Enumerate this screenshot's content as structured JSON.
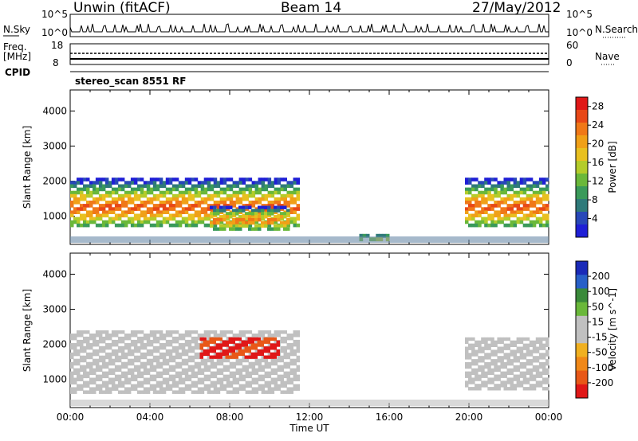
{
  "header": {
    "station": "Unwin (fitACF)",
    "beam": "Beam 14",
    "date": "27/May/2012"
  },
  "panels": {
    "nsky_label": "N.Sky",
    "nsearch_label": "N.Search",
    "log_top": "10^5",
    "log_bottom": "10^0",
    "freq_label": "Freq.",
    "freq_unit": "[MHz]",
    "freq_top": "18",
    "freq_bottom": "8",
    "nave_label": "Nave",
    "nave_top": "60",
    "nave_bottom": "0",
    "cpid_label": "CPID",
    "cpid_value": "stereo_scan 8551 RF"
  },
  "colors": {
    "power_scale": [
      "#1f1fd6",
      "#2848b8",
      "#2f7a7a",
      "#3a9a5a",
      "#6ab83a",
      "#b4cc2a",
      "#e8c020",
      "#f0a018",
      "#f07818",
      "#e84818",
      "#e01818"
    ],
    "velocity_scale": [
      "#1a2ab8",
      "#2860c8",
      "#3a8a3a",
      "#6ab83a",
      "#c0c0c0",
      "#c0c0c0",
      "#f0b020",
      "#f08818",
      "#e85818",
      "#e01818"
    ]
  },
  "chart_data": [
    {
      "type": "heatmap",
      "title": "",
      "ylabel": "Slant Range [km]",
      "xlabel": "",
      "ylim": [
        200,
        4600
      ],
      "yticks": [
        1000,
        2000,
        3000,
        4000
      ],
      "x_range": [
        "00:00",
        "24:00"
      ],
      "colorbar": {
        "label": "Power [dB]",
        "ticks": [
          4,
          8,
          12,
          16,
          20,
          24,
          28
        ],
        "range": [
          0,
          30
        ]
      },
      "features": [
        {
          "start_hour": 0.0,
          "end_hour": 11.5,
          "range_km": [
            700,
            2100
          ],
          "peak_db": 28
        },
        {
          "start_hour": 7.0,
          "end_hour": 11.0,
          "range_km": [
            600,
            1300
          ],
          "peak_db": 26
        },
        {
          "start_hour": 14.5,
          "end_hour": 16.0,
          "range_km": [
            300,
            500
          ],
          "peak_db": 20
        },
        {
          "start_hour": 19.8,
          "end_hour": 24.0,
          "range_km": [
            700,
            2100
          ],
          "peak_db": 28
        }
      ]
    },
    {
      "type": "heatmap",
      "title": "",
      "ylabel": "Slant Range [km]",
      "xlabel": "Time UT",
      "ylim": [
        200,
        4600
      ],
      "yticks": [
        1000,
        2000,
        3000,
        4000
      ],
      "xticks": [
        "00:00",
        "04:00",
        "08:00",
        "12:00",
        "16:00",
        "20:00",
        "00:00"
      ],
      "colorbar": {
        "label": "Velocity [m s^-1]",
        "ticks": [
          200,
          100,
          50,
          15,
          -15,
          -50,
          -100,
          -200
        ]
      },
      "features": [
        {
          "start_hour": 0.0,
          "end_hour": 11.5,
          "range_km": [
            600,
            2400
          ],
          "velocity": 0
        },
        {
          "start_hour": 6.5,
          "end_hour": 10.5,
          "range_km": [
            1600,
            2200
          ],
          "velocity": -150
        },
        {
          "start_hour": 19.8,
          "end_hour": 24.0,
          "range_km": [
            700,
            2200
          ],
          "velocity": 0
        }
      ]
    }
  ]
}
